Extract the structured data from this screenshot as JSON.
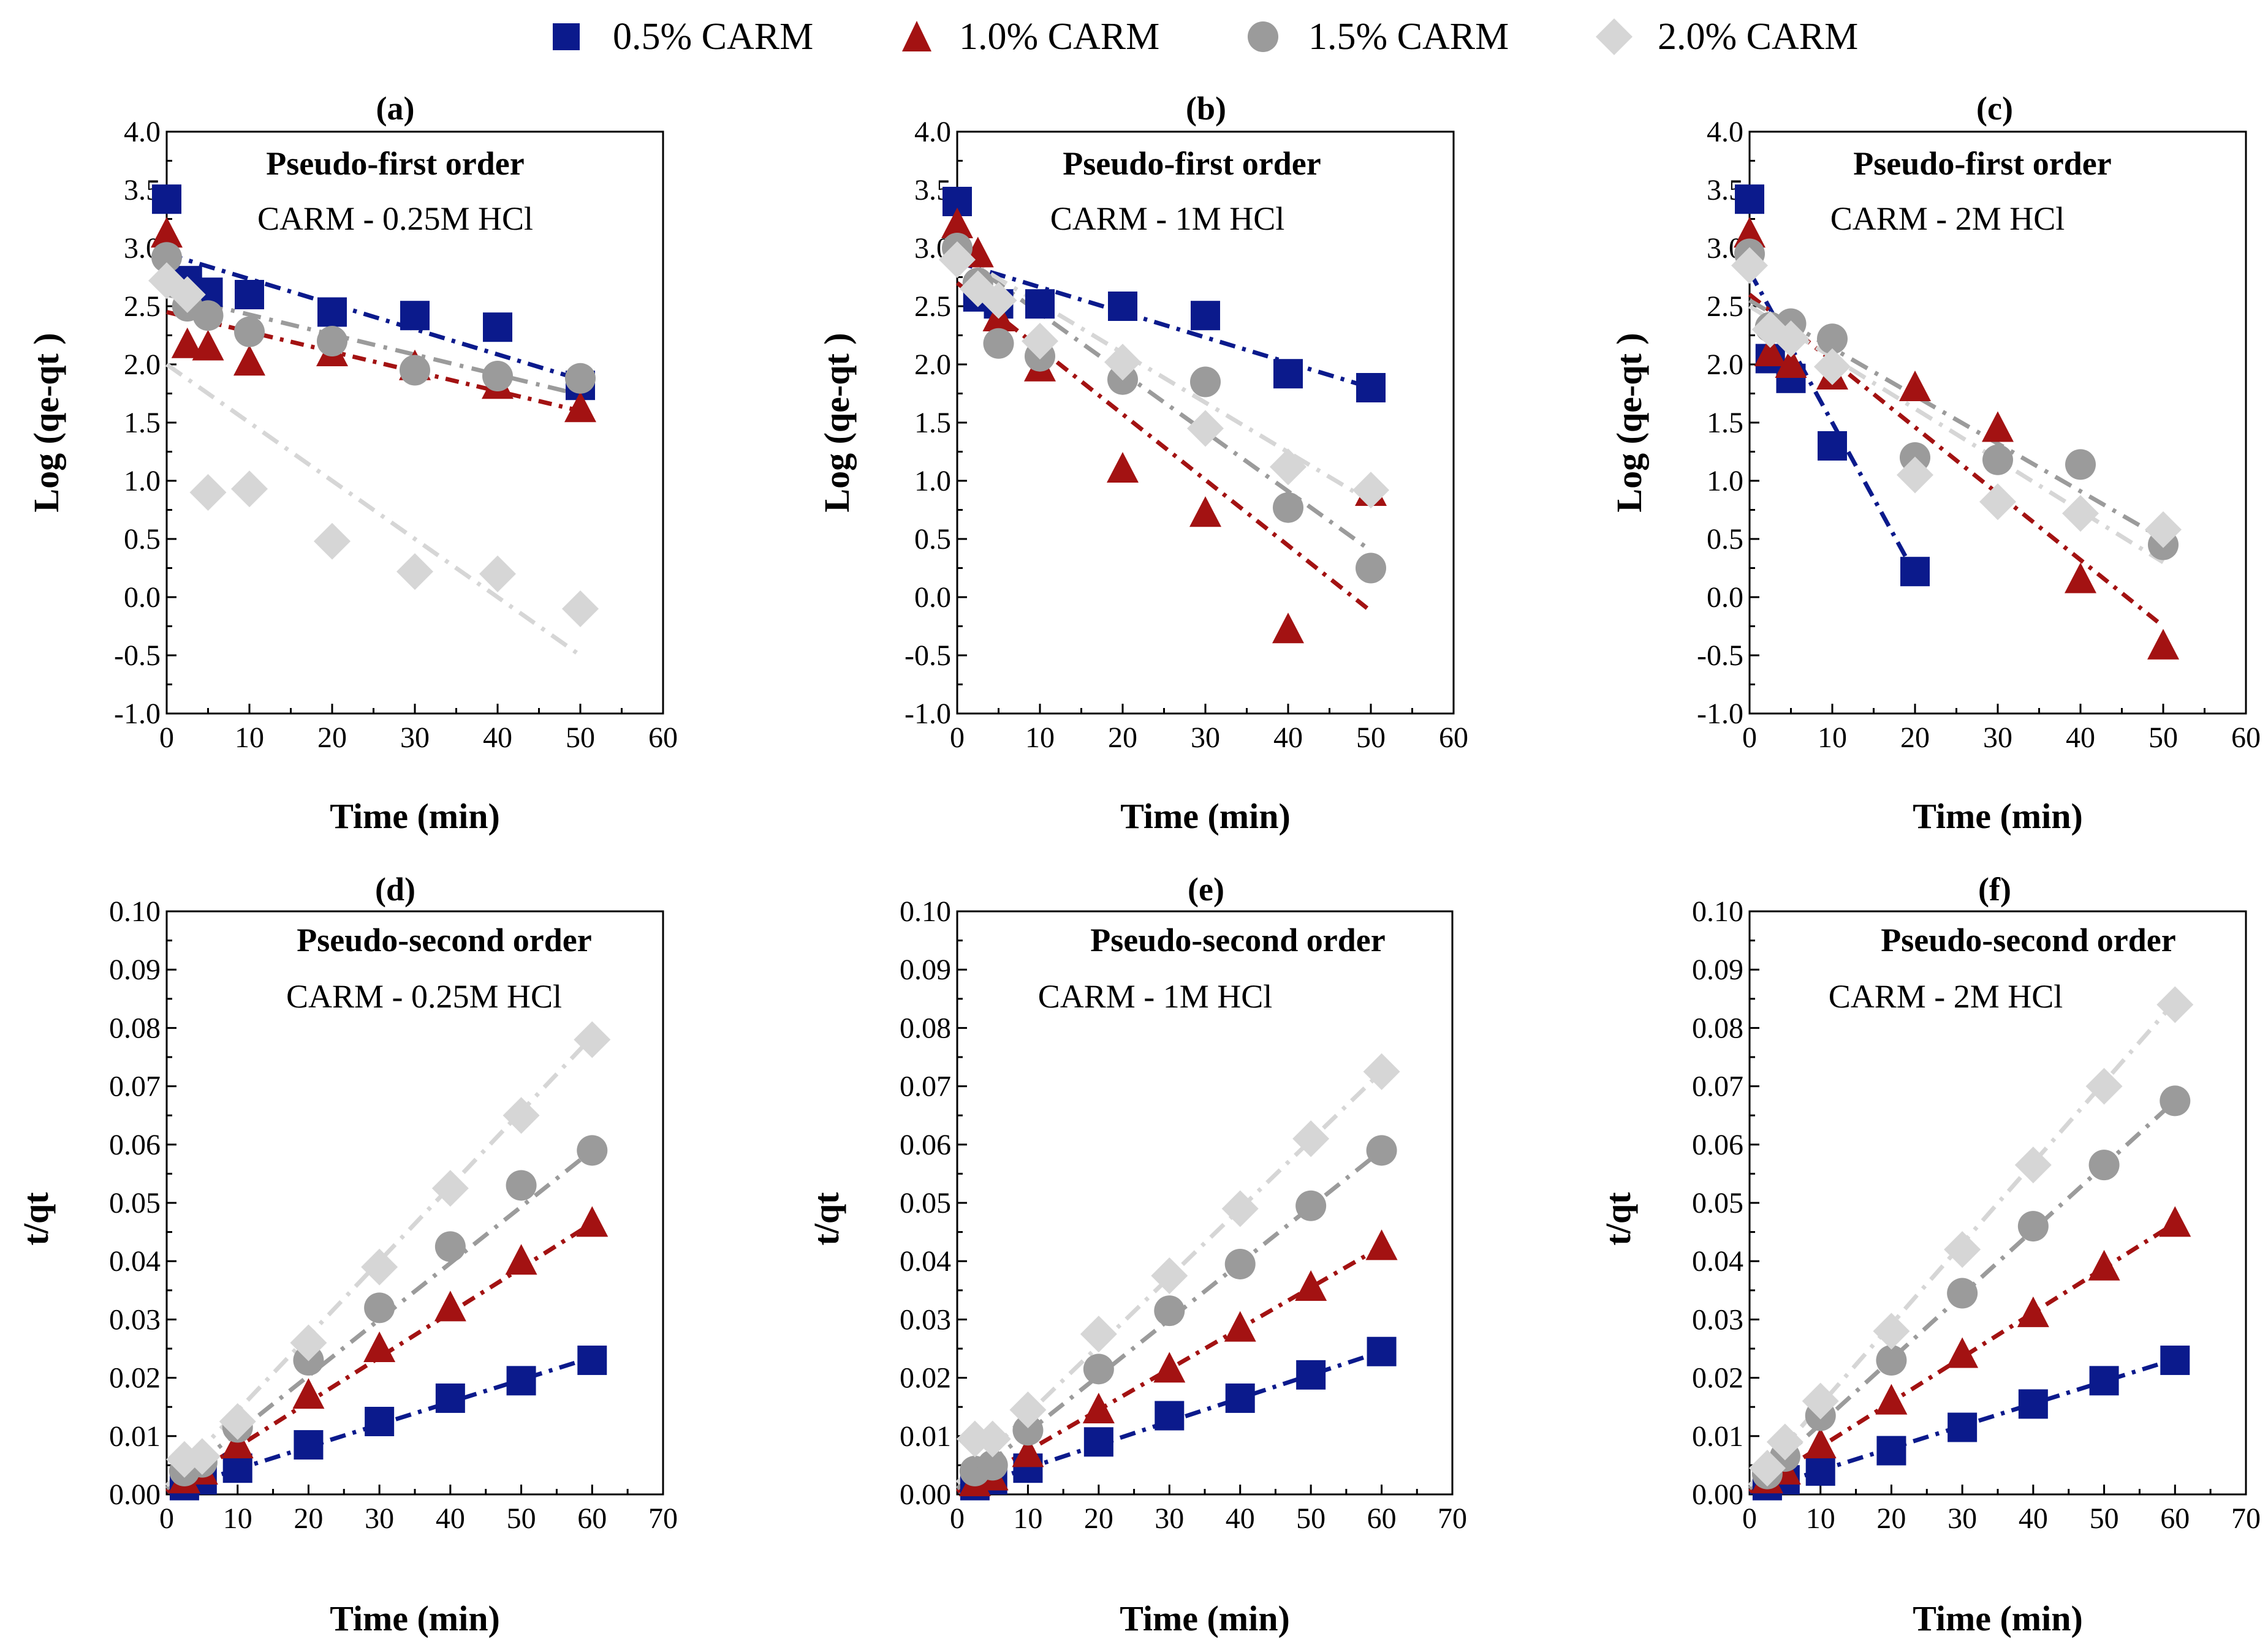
{
  "legend": {
    "items": [
      {
        "label": "0.5% CARM",
        "marker": "square",
        "color": "#0b1a8c"
      },
      {
        "label": "1.0% CARM",
        "marker": "triangle",
        "color": "#a31212"
      },
      {
        "label": "1.5% CARM",
        "marker": "circle",
        "color": "#9b9b9b"
      },
      {
        "label": "2.0% CARM",
        "marker": "diamond",
        "color": "#d6d6d6"
      }
    ]
  },
  "chart_data": [
    {
      "panel": "(a)",
      "type": "scatter",
      "title": "Pseudo-first order",
      "subtitle": "CARM - 0.25M HCl",
      "xlabel": "Time (min)",
      "ylabel": "Log (qe-qt )",
      "xlim": [
        0,
        60
      ],
      "ylim": [
        -1.0,
        4.0
      ],
      "xticks": [
        0,
        10,
        20,
        30,
        40,
        50,
        60
      ],
      "yticks": [
        -1.0,
        -0.5,
        0.0,
        0.5,
        1.0,
        1.5,
        2.0,
        2.5,
        3.0,
        3.5,
        4.0
      ],
      "ytick_labels": [
        "-1.0",
        "-0.5",
        "0.0",
        "0.5",
        "1.0",
        "1.5",
        "2.0",
        "2.5",
        "3.0",
        "3.5",
        "4.0"
      ],
      "series": [
        {
          "name": "0.5% CARM",
          "x": [
            0,
            2.5,
            5,
            10,
            20,
            30,
            40,
            50
          ],
          "y": [
            3.42,
            2.72,
            2.62,
            2.6,
            2.45,
            2.42,
            2.32,
            1.82
          ],
          "fit": [
            2.95,
            1.87
          ]
        },
        {
          "name": "1.0% CARM",
          "x": [
            0,
            2.5,
            5,
            10,
            20,
            30,
            40,
            50
          ],
          "y": [
            3.12,
            2.17,
            2.15,
            2.02,
            2.1,
            1.98,
            1.82,
            1.62
          ],
          "fit": [
            2.45,
            1.6
          ]
        },
        {
          "name": "1.5% CARM",
          "x": [
            0,
            2.5,
            5,
            10,
            20,
            30,
            40,
            50
          ],
          "y": [
            2.92,
            2.5,
            2.42,
            2.28,
            2.2,
            1.95,
            1.9,
            1.88
          ],
          "fit": [
            2.6,
            1.74
          ]
        },
        {
          "name": "2.0% CARM",
          "x": [
            0,
            2.5,
            5,
            10,
            20,
            30,
            40,
            50
          ],
          "y": [
            2.72,
            2.6,
            0.9,
            0.93,
            0.48,
            0.22,
            0.2,
            -0.1
          ],
          "fit": [
            2.0,
            -0.5
          ]
        }
      ]
    },
    {
      "panel": "(b)",
      "type": "scatter",
      "title": "Pseudo-first order",
      "subtitle": "CARM - 1M HCl",
      "xlabel": "Time (min)",
      "ylabel": "Log (qe-qt )",
      "xlim": [
        0,
        60
      ],
      "ylim": [
        -1.0,
        4.0
      ],
      "xticks": [
        0,
        10,
        20,
        30,
        40,
        50,
        60
      ],
      "yticks": [
        -1.0,
        -0.5,
        0.0,
        0.5,
        1.0,
        1.5,
        2.0,
        2.5,
        3.0,
        3.5,
        4.0
      ],
      "ytick_labels": [
        "-1.0",
        "-0.5",
        "0.0",
        "0.5",
        "1.0",
        "1.5",
        "2.0",
        "2.5",
        "3.0",
        "3.5",
        "4.0"
      ],
      "series": [
        {
          "name": "0.5% CARM",
          "x": [
            0,
            2.5,
            5,
            10,
            20,
            30,
            40,
            50
          ],
          "y": [
            3.4,
            2.58,
            2.52,
            2.52,
            2.5,
            2.42,
            1.92,
            1.8
          ],
          "fit": [
            2.88,
            1.8
          ]
        },
        {
          "name": "1.0% CARM",
          "x": [
            0,
            2.5,
            5,
            10,
            20,
            30,
            40,
            50
          ],
          "y": [
            3.2,
            2.95,
            2.4,
            1.97,
            1.1,
            0.72,
            -0.28,
            0.9
          ],
          "fit": [
            2.7,
            -0.12
          ]
        },
        {
          "name": "1.5% CARM",
          "x": [
            0,
            2.5,
            5,
            10,
            20,
            30,
            40,
            50
          ],
          "y": [
            3.0,
            2.7,
            2.18,
            2.07,
            1.87,
            1.85,
            0.77,
            0.25
          ],
          "fit": [
            2.95,
            0.4
          ]
        },
        {
          "name": "2.0% CARM",
          "x": [
            0,
            2.5,
            5,
            10,
            20,
            30,
            40,
            50
          ],
          "y": [
            2.9,
            2.65,
            2.55,
            2.2,
            2.02,
            1.45,
            1.12,
            0.92
          ],
          "fit": [
            2.95,
            0.82
          ]
        }
      ]
    },
    {
      "panel": "(c)",
      "type": "scatter",
      "title": "Pseudo-first order",
      "subtitle": "CARM - 2M HCl",
      "xlabel": "Time (min)",
      "ylabel": "Log (qe-qt )",
      "xlim": [
        0,
        60
      ],
      "ylim": [
        -1.0,
        4.0
      ],
      "xticks": [
        0,
        10,
        20,
        30,
        40,
        50,
        60
      ],
      "yticks": [
        -1.0,
        -0.5,
        0.0,
        0.5,
        1.0,
        1.5,
        2.0,
        2.5,
        3.0,
        3.5,
        4.0
      ],
      "ytick_labels": [
        "-1.0",
        "-0.5",
        "0.0",
        "0.5",
        "1.0",
        "1.5",
        "2.0",
        "2.5",
        "3.0",
        "3.5",
        "4.0"
      ],
      "series": [
        {
          "name": "0.5% CARM",
          "x": [
            0,
            2.5,
            5,
            10,
            20
          ],
          "y": [
            3.42,
            2.05,
            1.88,
            1.3,
            0.22
          ],
          "fit": [
            2.8,
            0.2
          ],
          "fit_x": [
            0,
            20
          ]
        },
        {
          "name": "1.0% CARM",
          "x": [
            0,
            2.5,
            5,
            10,
            20,
            30,
            40,
            50
          ],
          "y": [
            3.12,
            2.1,
            2.0,
            1.9,
            1.8,
            1.45,
            0.15,
            -0.42
          ],
          "fit": [
            2.6,
            -0.25
          ]
        },
        {
          "name": "1.5% CARM",
          "x": [
            0,
            2.5,
            5,
            10,
            20,
            30,
            40,
            50
          ],
          "y": [
            2.95,
            2.32,
            2.35,
            2.22,
            1.2,
            1.18,
            1.14,
            0.45
          ],
          "fit": [
            2.55,
            0.5
          ]
        },
        {
          "name": "2.0% CARM",
          "x": [
            0,
            2.5,
            5,
            10,
            20,
            30,
            40,
            50
          ],
          "y": [
            2.85,
            2.3,
            2.22,
            1.98,
            1.05,
            0.82,
            0.72,
            0.58
          ],
          "fit": [
            2.5,
            0.3
          ]
        }
      ]
    },
    {
      "panel": "(d)",
      "type": "scatter",
      "title": "Pseudo-second order",
      "subtitle": "CARM - 0.25M HCl",
      "xlabel": "Time (min)",
      "ylabel": "t/qt",
      "xlim": [
        0,
        70
      ],
      "ylim": [
        0.0,
        0.1
      ],
      "xticks": [
        0,
        10,
        20,
        30,
        40,
        50,
        60,
        70
      ],
      "yticks": [
        0.0,
        0.01,
        0.02,
        0.03,
        0.04,
        0.05,
        0.06,
        0.07,
        0.08,
        0.09,
        0.1
      ],
      "ytick_labels": [
        "0.00",
        "0.01",
        "0.02",
        "0.03",
        "0.04",
        "0.05",
        "0.06",
        "0.07",
        "0.08",
        "0.09",
        "0.10"
      ],
      "series": [
        {
          "name": "0.5% CARM",
          "x": [
            2.5,
            5,
            10,
            20,
            30,
            40,
            50,
            60
          ],
          "y": [
            0.0015,
            0.0025,
            0.0045,
            0.0085,
            0.0125,
            0.0165,
            0.0195,
            0.023
          ],
          "fit": [
            0.0005,
            0.0235
          ],
          "fit_x": [
            0,
            60
          ]
        },
        {
          "name": "1.0% CARM",
          "x": [
            2.5,
            5,
            10,
            20,
            30,
            40,
            50,
            60
          ],
          "y": [
            0.0025,
            0.004,
            0.0085,
            0.017,
            0.025,
            0.032,
            0.04,
            0.0465
          ],
          "fit": [
            0.0005,
            0.0465
          ],
          "fit_x": [
            0,
            60
          ]
        },
        {
          "name": "1.5% CARM",
          "x": [
            2.5,
            5,
            10,
            20,
            30,
            40,
            50,
            60
          ],
          "y": [
            0.004,
            0.0055,
            0.0115,
            0.023,
            0.032,
            0.0425,
            0.053,
            0.059
          ],
          "fit": [
            0.001,
            0.059
          ],
          "fit_x": [
            0,
            60
          ]
        },
        {
          "name": "2.0% CARM",
          "x": [
            2.5,
            5,
            10,
            20,
            30,
            40,
            50,
            60
          ],
          "y": [
            0.006,
            0.0065,
            0.0125,
            0.026,
            0.039,
            0.0525,
            0.065,
            0.078
          ],
          "fit": [
            0.0015,
            0.0785
          ],
          "fit_x": [
            0,
            60
          ]
        }
      ]
    },
    {
      "panel": "(e)",
      "type": "scatter",
      "title": "Pseudo-second order",
      "subtitle": "CARM - 1M HCl",
      "xlabel": "Time (min)",
      "ylabel": "t/qt",
      "xlim": [
        0,
        70
      ],
      "ylim": [
        0.0,
        0.1
      ],
      "xticks": [
        0,
        10,
        20,
        30,
        40,
        50,
        60,
        70
      ],
      "yticks": [
        0.0,
        0.01,
        0.02,
        0.03,
        0.04,
        0.05,
        0.06,
        0.07,
        0.08,
        0.09,
        0.1
      ],
      "ytick_labels": [
        "0.00",
        "0.01",
        "0.02",
        "0.03",
        "0.04",
        "0.05",
        "0.06",
        "0.07",
        "0.08",
        "0.09",
        "0.10"
      ],
      "series": [
        {
          "name": "0.5% CARM",
          "x": [
            2.5,
            5,
            10,
            20,
            30,
            40,
            50,
            60
          ],
          "y": [
            0.0015,
            0.0025,
            0.0045,
            0.009,
            0.0135,
            0.0165,
            0.0205,
            0.0245
          ],
          "fit": [
            0.0005,
            0.0245
          ],
          "fit_x": [
            0,
            60
          ]
        },
        {
          "name": "1.0% CARM",
          "x": [
            2.5,
            5,
            10,
            20,
            30,
            40,
            50,
            60
          ],
          "y": [
            0.002,
            0.003,
            0.007,
            0.0145,
            0.0215,
            0.0285,
            0.0355,
            0.0425
          ],
          "fit": [
            0.0005,
            0.0425
          ],
          "fit_x": [
            0,
            60
          ]
        },
        {
          "name": "1.5% CARM",
          "x": [
            2.5,
            5,
            10,
            20,
            30,
            40,
            50,
            60
          ],
          "y": [
            0.004,
            0.005,
            0.011,
            0.0215,
            0.0315,
            0.0395,
            0.0495,
            0.059
          ],
          "fit": [
            0.001,
            0.059
          ],
          "fit_x": [
            0,
            60
          ]
        },
        {
          "name": "2.0% CARM",
          "x": [
            2.5,
            5,
            10,
            20,
            30,
            40,
            50,
            60
          ],
          "y": [
            0.0095,
            0.0095,
            0.0145,
            0.0275,
            0.0375,
            0.049,
            0.061,
            0.0725
          ],
          "fit": [
            0.002,
            0.0725
          ],
          "fit_x": [
            0,
            60
          ]
        }
      ]
    },
    {
      "panel": "(f)",
      "type": "scatter",
      "title": "Pseudo-second order",
      "subtitle": "CARM - 2M HCl",
      "xlabel": "Time (min)",
      "ylabel": "t/qt",
      "xlim": [
        0,
        70
      ],
      "ylim": [
        0.0,
        0.1
      ],
      "xticks": [
        0,
        10,
        20,
        30,
        40,
        50,
        60,
        70
      ],
      "yticks": [
        0.0,
        0.01,
        0.02,
        0.03,
        0.04,
        0.05,
        0.06,
        0.07,
        0.08,
        0.09,
        0.1
      ],
      "ytick_labels": [
        "0.00",
        "0.01",
        "0.02",
        "0.03",
        "0.04",
        "0.05",
        "0.06",
        "0.07",
        "0.08",
        "0.09",
        "0.10"
      ],
      "series": [
        {
          "name": "0.5% CARM",
          "x": [
            2.5,
            5,
            10,
            20,
            30,
            40,
            50,
            60
          ],
          "y": [
            0.0015,
            0.0025,
            0.004,
            0.0075,
            0.0115,
            0.0155,
            0.0195,
            0.023
          ],
          "fit": [
            0.0003,
            0.0232
          ],
          "fit_x": [
            0,
            60
          ]
        },
        {
          "name": "1.0% CARM",
          "x": [
            2.5,
            5,
            10,
            20,
            30,
            40,
            50,
            60
          ],
          "y": [
            0.0025,
            0.004,
            0.0085,
            0.016,
            0.024,
            0.031,
            0.039,
            0.0465
          ],
          "fit": [
            0.0005,
            0.0465
          ],
          "fit_x": [
            0,
            60
          ]
        },
        {
          "name": "1.5% CARM",
          "x": [
            2.5,
            5,
            10,
            20,
            30,
            40,
            50,
            60
          ],
          "y": [
            0.0035,
            0.0065,
            0.0135,
            0.023,
            0.0345,
            0.046,
            0.0565,
            0.0675
          ],
          "fit": [
            0.001,
            0.0675
          ],
          "fit_x": [
            0,
            60
          ]
        },
        {
          "name": "2.0% CARM",
          "x": [
            2.5,
            5,
            10,
            20,
            30,
            40,
            50,
            60
          ],
          "y": [
            0.0045,
            0.009,
            0.016,
            0.028,
            0.042,
            0.0565,
            0.07,
            0.084
          ],
          "fit": [
            0.0015,
            0.0845
          ],
          "fit_x": [
            0,
            60
          ]
        }
      ]
    }
  ]
}
